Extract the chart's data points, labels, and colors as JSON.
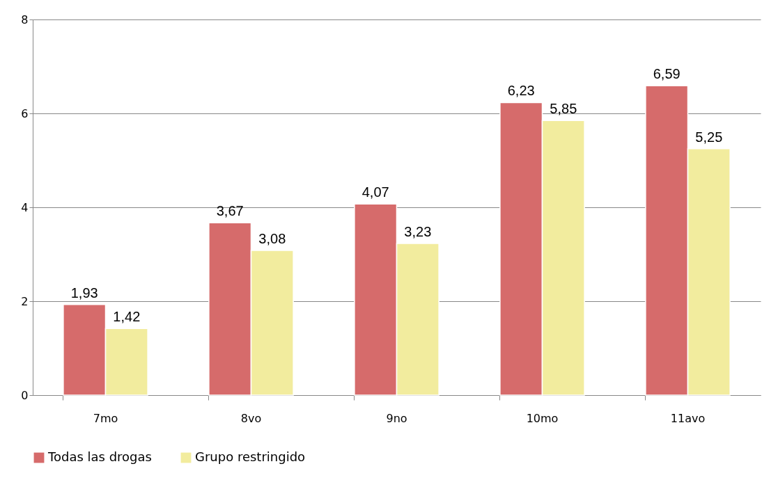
{
  "chart_data": {
    "type": "bar",
    "categories": [
      "7mo",
      "8vo",
      "9no",
      "10mo",
      "11avo"
    ],
    "series": [
      {
        "name": "Todas las drogas",
        "color": "#d66b6b",
        "values": [
          1.93,
          3.67,
          4.07,
          6.23,
          6.59
        ],
        "value_labels": [
          "1,93",
          "3,67",
          "4,07",
          "6,23",
          "6,59"
        ]
      },
      {
        "name": "Grupo restringido",
        "color": "#f2ec9e",
        "values": [
          1.42,
          3.08,
          3.23,
          5.85,
          5.25
        ],
        "value_labels": [
          "1,42",
          "3,08",
          "3,23",
          "5,85",
          "5,25"
        ]
      }
    ],
    "ylim": [
      0,
      8
    ],
    "yticks": [
      0,
      2,
      4,
      6,
      8
    ],
    "grid": "y",
    "legend": "bottom"
  }
}
